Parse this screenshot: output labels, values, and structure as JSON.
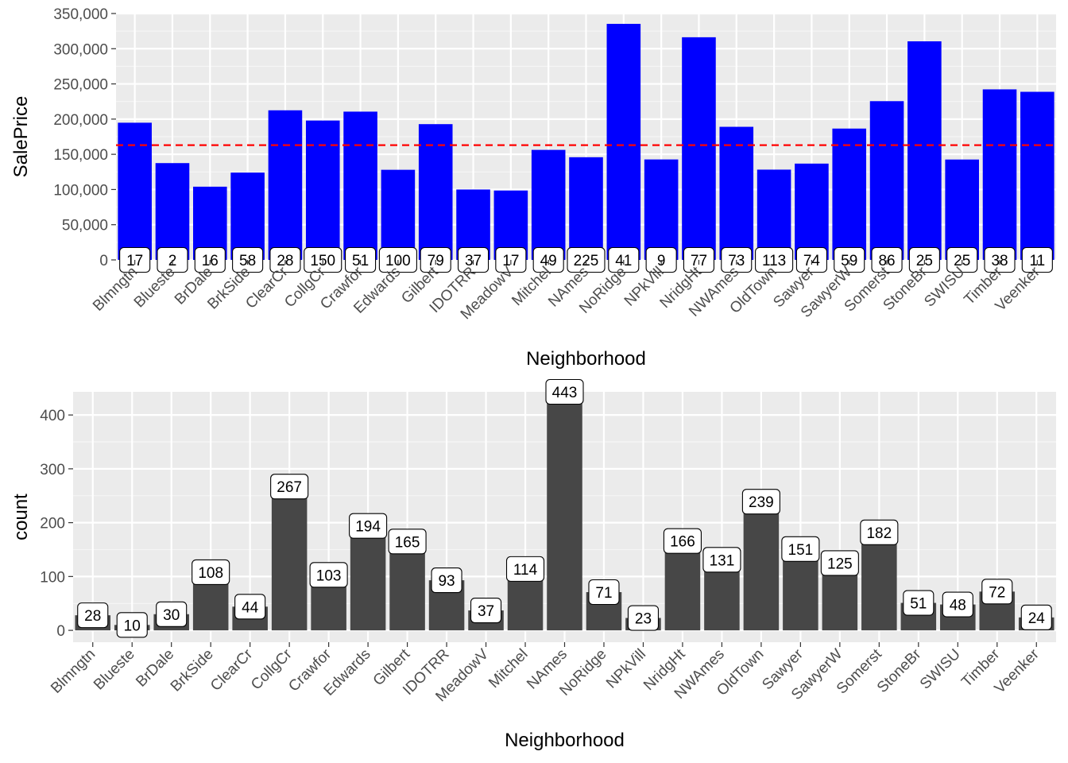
{
  "chart_data": [
    {
      "type": "bar",
      "xlabel": "Neighborhood",
      "ylabel": "SalePrice",
      "ylim": [
        0,
        350000
      ],
      "yticks": [
        "0",
        "50,000",
        "100,000",
        "150,000",
        "200,000",
        "250,000",
        "300,000",
        "350,000"
      ],
      "ytick_values": [
        0,
        50000,
        100000,
        150000,
        200000,
        250000,
        300000,
        350000
      ],
      "bar_color": "#0000ff",
      "reference_line": {
        "y": 163000,
        "color": "#ff0000",
        "style": "dashed"
      },
      "grid": true,
      "categories": [
        "Blmngtn",
        "Blueste",
        "BrDale",
        "BrkSide",
        "ClearCr",
        "CollgCr",
        "Crawfor",
        "Edwards",
        "Gilbert",
        "IDOTRR",
        "MeadowV",
        "Mitchel",
        "NAmes",
        "NoRidge",
        "NPkVill",
        "NridgHt",
        "NWAmes",
        "OldTown",
        "Sawyer",
        "SawyerW",
        "Somerst",
        "StoneBr",
        "SWISU",
        "Timber",
        "Veenker"
      ],
      "values": [
        194870,
        137500,
        104000,
        124000,
        212500,
        197965,
        210624,
        128000,
        192855,
        100000,
        98576,
        156270,
        145847,
        335295,
        142695,
        316270,
        189050,
        128225,
        136793,
        186555,
        225500,
        310499,
        142591,
        242247,
        238773
      ],
      "labels": [
        "17",
        "2",
        "16",
        "58",
        "28",
        "150",
        "51",
        "100",
        "79",
        "37",
        "17",
        "49",
        "225",
        "41",
        "9",
        "77",
        "73",
        "113",
        "74",
        "59",
        "86",
        "25",
        "25",
        "38",
        "11"
      ]
    },
    {
      "type": "bar",
      "xlabel": "Neighborhood",
      "ylabel": "count",
      "ylim": [
        -22,
        443
      ],
      "yticks": [
        "0",
        "100",
        "200",
        "300",
        "400"
      ],
      "ytick_values": [
        0,
        100,
        200,
        300,
        400
      ],
      "bar_color": "#474747",
      "grid": true,
      "categories": [
        "Blmngtn",
        "Blueste",
        "BrDale",
        "BrkSide",
        "ClearCr",
        "CollgCr",
        "Crawfor",
        "Edwards",
        "Gilbert",
        "IDOTRR",
        "MeadowV",
        "Mitchel",
        "NAmes",
        "NoRidge",
        "NPkVill",
        "NridgHt",
        "NWAmes",
        "OldTown",
        "Sawyer",
        "SawyerW",
        "Somerst",
        "StoneBr",
        "SWISU",
        "Timber",
        "Veenker"
      ],
      "values": [
        28,
        10,
        30,
        108,
        44,
        267,
        103,
        194,
        165,
        93,
        37,
        114,
        443,
        71,
        23,
        166,
        131,
        239,
        151,
        125,
        182,
        51,
        48,
        72,
        24
      ],
      "labels": [
        "28",
        "10",
        "30",
        "108",
        "44",
        "267",
        "103",
        "194",
        "165",
        "93",
        "37",
        "114",
        "443",
        "71",
        "23",
        "166",
        "131",
        "239",
        "151",
        "125",
        "182",
        "51",
        "48",
        "72",
        "24"
      ]
    }
  ]
}
